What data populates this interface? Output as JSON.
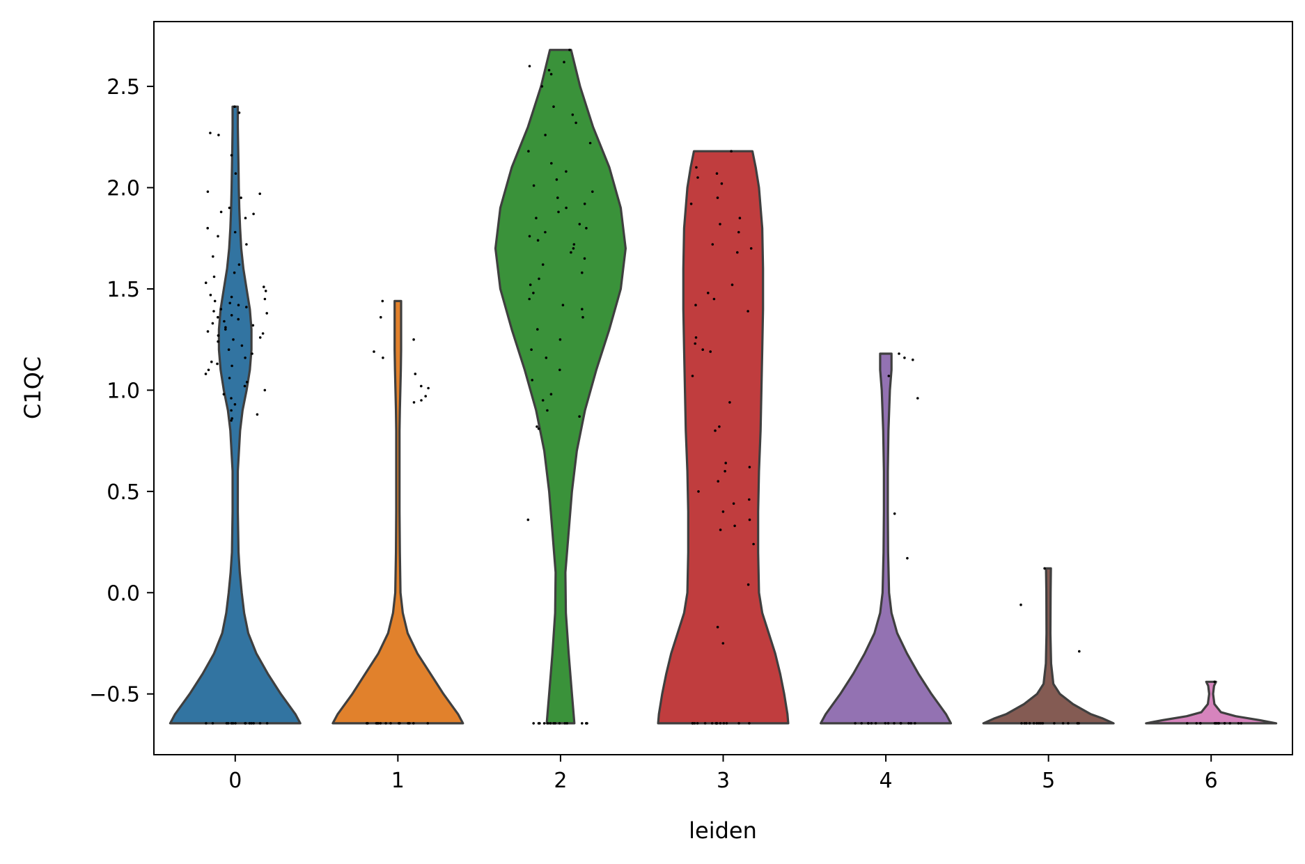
{
  "chart_data": {
    "type": "violin",
    "title": "",
    "xlabel": "leiden",
    "ylabel": "C1QC",
    "ylim": [
      -0.8,
      2.82
    ],
    "xlim": [
      -0.5,
      6.5
    ],
    "yticks": [
      -0.5,
      0.0,
      0.5,
      1.0,
      1.5,
      2.0,
      2.5
    ],
    "ytick_labels": [
      "−0.5",
      "0.0",
      "0.5",
      "1.0",
      "1.5",
      "2.0",
      "2.5"
    ],
    "grid": false,
    "legend": "none",
    "series": [
      {
        "category": "0",
        "color": "#3274a1",
        "min": -0.645,
        "max": 2.4,
        "profile": [
          [
            -0.645,
            0.4
          ],
          [
            -0.6,
            0.37
          ],
          [
            -0.5,
            0.28
          ],
          [
            -0.4,
            0.2
          ],
          [
            -0.3,
            0.13
          ],
          [
            -0.2,
            0.08
          ],
          [
            -0.1,
            0.055
          ],
          [
            0.0,
            0.04
          ],
          [
            0.1,
            0.028
          ],
          [
            0.2,
            0.02
          ],
          [
            0.4,
            0.016
          ],
          [
            0.6,
            0.016
          ],
          [
            0.8,
            0.03
          ],
          [
            0.9,
            0.045
          ],
          [
            1.0,
            0.07
          ],
          [
            1.1,
            0.09
          ],
          [
            1.2,
            0.1
          ],
          [
            1.3,
            0.1
          ],
          [
            1.4,
            0.09
          ],
          [
            1.5,
            0.07
          ],
          [
            1.6,
            0.05
          ],
          [
            1.7,
            0.037
          ],
          [
            1.8,
            0.03
          ],
          [
            1.9,
            0.025
          ],
          [
            2.0,
            0.022
          ],
          [
            2.1,
            0.02
          ],
          [
            2.2,
            0.018
          ],
          [
            2.3,
            0.016
          ],
          [
            2.4,
            0.016
          ]
        ]
      },
      {
        "category": "1",
        "color": "#e1812c",
        "min": -0.645,
        "max": 1.44,
        "profile": [
          [
            -0.645,
            0.4
          ],
          [
            -0.6,
            0.37
          ],
          [
            -0.5,
            0.28
          ],
          [
            -0.4,
            0.2
          ],
          [
            -0.3,
            0.12
          ],
          [
            -0.2,
            0.06
          ],
          [
            -0.1,
            0.03
          ],
          [
            0.0,
            0.016
          ],
          [
            0.2,
            0.012
          ],
          [
            0.4,
            0.01
          ],
          [
            0.6,
            0.01
          ],
          [
            0.8,
            0.01
          ],
          [
            0.9,
            0.012
          ],
          [
            1.0,
            0.015
          ],
          [
            1.1,
            0.018
          ],
          [
            1.2,
            0.02
          ],
          [
            1.3,
            0.02
          ],
          [
            1.44,
            0.02
          ]
        ]
      },
      {
        "category": "2",
        "color": "#3a923a",
        "min": -0.645,
        "max": 2.68,
        "profile": [
          [
            -0.645,
            0.085
          ],
          [
            -0.5,
            0.07
          ],
          [
            -0.3,
            0.05
          ],
          [
            -0.1,
            0.033
          ],
          [
            0.1,
            0.03
          ],
          [
            0.3,
            0.05
          ],
          [
            0.5,
            0.07
          ],
          [
            0.7,
            0.1
          ],
          [
            0.9,
            0.15
          ],
          [
            1.1,
            0.22
          ],
          [
            1.3,
            0.3
          ],
          [
            1.5,
            0.37
          ],
          [
            1.7,
            0.4
          ],
          [
            1.9,
            0.37
          ],
          [
            2.1,
            0.3
          ],
          [
            2.3,
            0.2
          ],
          [
            2.5,
            0.12
          ],
          [
            2.68,
            0.065
          ]
        ]
      },
      {
        "category": "3",
        "color": "#c03d3e",
        "min": -0.645,
        "max": 2.18,
        "profile": [
          [
            -0.645,
            0.4
          ],
          [
            -0.6,
            0.395
          ],
          [
            -0.5,
            0.375
          ],
          [
            -0.4,
            0.35
          ],
          [
            -0.3,
            0.32
          ],
          [
            -0.2,
            0.28
          ],
          [
            -0.1,
            0.24
          ],
          [
            0.0,
            0.22
          ],
          [
            0.2,
            0.215
          ],
          [
            0.4,
            0.215
          ],
          [
            0.6,
            0.22
          ],
          [
            0.8,
            0.23
          ],
          [
            1.0,
            0.235
          ],
          [
            1.2,
            0.24
          ],
          [
            1.4,
            0.245
          ],
          [
            1.6,
            0.245
          ],
          [
            1.8,
            0.24
          ],
          [
            2.0,
            0.22
          ],
          [
            2.1,
            0.2
          ],
          [
            2.18,
            0.18
          ]
        ]
      },
      {
        "category": "4",
        "color": "#9372b2",
        "min": -0.645,
        "max": 1.18,
        "profile": [
          [
            -0.645,
            0.4
          ],
          [
            -0.6,
            0.37
          ],
          [
            -0.5,
            0.28
          ],
          [
            -0.4,
            0.2
          ],
          [
            -0.3,
            0.13
          ],
          [
            -0.2,
            0.07
          ],
          [
            -0.1,
            0.035
          ],
          [
            0.0,
            0.02
          ],
          [
            0.2,
            0.014
          ],
          [
            0.4,
            0.012
          ],
          [
            0.6,
            0.012
          ],
          [
            0.8,
            0.016
          ],
          [
            1.0,
            0.025
          ],
          [
            1.1,
            0.035
          ],
          [
            1.18,
            0.035
          ]
        ]
      },
      {
        "category": "5",
        "color": "#845b53",
        "min": -0.645,
        "max": 0.12,
        "profile": [
          [
            -0.645,
            0.4
          ],
          [
            -0.62,
            0.33
          ],
          [
            -0.6,
            0.26
          ],
          [
            -0.55,
            0.15
          ],
          [
            -0.5,
            0.07
          ],
          [
            -0.45,
            0.03
          ],
          [
            -0.35,
            0.016
          ],
          [
            -0.2,
            0.012
          ],
          [
            0.0,
            0.013
          ],
          [
            0.12,
            0.015
          ]
        ]
      },
      {
        "category": "6",
        "color": "#d684bd",
        "min": -0.645,
        "max": -0.44,
        "profile": [
          [
            -0.645,
            0.4
          ],
          [
            -0.63,
            0.3
          ],
          [
            -0.61,
            0.15
          ],
          [
            -0.59,
            0.06
          ],
          [
            -0.55,
            0.02
          ],
          [
            -0.5,
            0.012
          ],
          [
            -0.46,
            0.018
          ],
          [
            -0.44,
            0.03
          ]
        ]
      }
    ],
    "jitter": {
      "color": "#000000",
      "points": [
        [
          0,
          2.4
        ],
        [
          0,
          2.37
        ],
        [
          0,
          2.27
        ],
        [
          0,
          2.26
        ],
        [
          0,
          2.16
        ],
        [
          0,
          2.07
        ],
        [
          0,
          1.98
        ],
        [
          0,
          1.97
        ],
        [
          0,
          1.95
        ],
        [
          0,
          1.9
        ],
        [
          0,
          1.88
        ],
        [
          0,
          1.87
        ],
        [
          0,
          1.85
        ],
        [
          0,
          1.8
        ],
        [
          0,
          1.78
        ],
        [
          0,
          1.76
        ],
        [
          0,
          1.72
        ],
        [
          0,
          1.66
        ],
        [
          0,
          1.62
        ],
        [
          0,
          1.58
        ],
        [
          0,
          1.56
        ],
        [
          0,
          1.53
        ],
        [
          0,
          1.51
        ],
        [
          0,
          1.49
        ],
        [
          0,
          1.47
        ],
        [
          0,
          1.46
        ],
        [
          0,
          1.45
        ],
        [
          0,
          1.44
        ],
        [
          0,
          1.43
        ],
        [
          0,
          1.42
        ],
        [
          0,
          1.41
        ],
        [
          0,
          1.4
        ],
        [
          0,
          1.39
        ],
        [
          0,
          1.38
        ],
        [
          0,
          1.37
        ],
        [
          0,
          1.36
        ],
        [
          0,
          1.35
        ],
        [
          0,
          1.34
        ],
        [
          0,
          1.33
        ],
        [
          0,
          1.32
        ],
        [
          0,
          1.31
        ],
        [
          0,
          1.3
        ],
        [
          0,
          1.29
        ],
        [
          0,
          1.28
        ],
        [
          0,
          1.27
        ],
        [
          0,
          1.26
        ],
        [
          0,
          1.25
        ],
        [
          0,
          1.24
        ],
        [
          0,
          1.22
        ],
        [
          0,
          1.2
        ],
        [
          0,
          1.18
        ],
        [
          0,
          1.16
        ],
        [
          0,
          1.14
        ],
        [
          0,
          1.13
        ],
        [
          0,
          1.12
        ],
        [
          0,
          1.1
        ],
        [
          0,
          1.08
        ],
        [
          0,
          1.06
        ],
        [
          0,
          1.04
        ],
        [
          0,
          1.02
        ],
        [
          0,
          1.0
        ],
        [
          0,
          0.98
        ],
        [
          0,
          0.96
        ],
        [
          0,
          0.93
        ],
        [
          0,
          0.9
        ],
        [
          0,
          0.88
        ],
        [
          0,
          0.86
        ],
        [
          0,
          0.85
        ],
        [
          1,
          1.44
        ],
        [
          1,
          1.36
        ],
        [
          1,
          1.25
        ],
        [
          1,
          1.19
        ],
        [
          1,
          1.16
        ],
        [
          1,
          1.08
        ],
        [
          1,
          1.02
        ],
        [
          1,
          1.01
        ],
        [
          1,
          0.97
        ],
        [
          1,
          0.95
        ],
        [
          1,
          0.94
        ],
        [
          2,
          2.68
        ],
        [
          2,
          2.62
        ],
        [
          2,
          2.6
        ],
        [
          2,
          2.58
        ],
        [
          2,
          2.56
        ],
        [
          2,
          2.5
        ],
        [
          2,
          2.4
        ],
        [
          2,
          2.36
        ],
        [
          2,
          2.32
        ],
        [
          2,
          2.26
        ],
        [
          2,
          2.22
        ],
        [
          2,
          2.18
        ],
        [
          2,
          2.12
        ],
        [
          2,
          2.08
        ],
        [
          2,
          2.04
        ],
        [
          2,
          2.01
        ],
        [
          2,
          1.98
        ],
        [
          2,
          1.95
        ],
        [
          2,
          1.92
        ],
        [
          2,
          1.9
        ],
        [
          2,
          1.88
        ],
        [
          2,
          1.85
        ],
        [
          2,
          1.82
        ],
        [
          2,
          1.8
        ],
        [
          2,
          1.78
        ],
        [
          2,
          1.76
        ],
        [
          2,
          1.74
        ],
        [
          2,
          1.72
        ],
        [
          2,
          1.7
        ],
        [
          2,
          1.68
        ],
        [
          2,
          1.65
        ],
        [
          2,
          1.62
        ],
        [
          2,
          1.58
        ],
        [
          2,
          1.55
        ],
        [
          2,
          1.52
        ],
        [
          2,
          1.48
        ],
        [
          2,
          1.45
        ],
        [
          2,
          1.42
        ],
        [
          2,
          1.4
        ],
        [
          2,
          1.36
        ],
        [
          2,
          1.3
        ],
        [
          2,
          1.25
        ],
        [
          2,
          1.2
        ],
        [
          2,
          1.16
        ],
        [
          2,
          1.1
        ],
        [
          2,
          1.05
        ],
        [
          2,
          0.98
        ],
        [
          2,
          0.95
        ],
        [
          2,
          0.9
        ],
        [
          2,
          0.87
        ],
        [
          2,
          0.82
        ],
        [
          2,
          0.81
        ],
        [
          2,
          0.36
        ],
        [
          3,
          2.18
        ],
        [
          3,
          2.1
        ],
        [
          3,
          2.07
        ],
        [
          3,
          2.05
        ],
        [
          3,
          2.02
        ],
        [
          3,
          1.95
        ],
        [
          3,
          1.92
        ],
        [
          3,
          1.85
        ],
        [
          3,
          1.82
        ],
        [
          3,
          1.78
        ],
        [
          3,
          1.72
        ],
        [
          3,
          1.7
        ],
        [
          3,
          1.68
        ],
        [
          3,
          1.52
        ],
        [
          3,
          1.48
        ],
        [
          3,
          1.45
        ],
        [
          3,
          1.42
        ],
        [
          3,
          1.39
        ],
        [
          3,
          1.26
        ],
        [
          3,
          1.23
        ],
        [
          3,
          1.2
        ],
        [
          3,
          1.19
        ],
        [
          3,
          1.07
        ],
        [
          3,
          0.94
        ],
        [
          3,
          0.82
        ],
        [
          3,
          0.8
        ],
        [
          3,
          0.64
        ],
        [
          3,
          0.62
        ],
        [
          3,
          0.6
        ],
        [
          3,
          0.55
        ],
        [
          3,
          0.5
        ],
        [
          3,
          0.46
        ],
        [
          3,
          0.44
        ],
        [
          3,
          0.4
        ],
        [
          3,
          0.36
        ],
        [
          3,
          0.33
        ],
        [
          3,
          0.31
        ],
        [
          3,
          0.24
        ],
        [
          3,
          0.04
        ],
        [
          3,
          -0.17
        ],
        [
          3,
          -0.25
        ],
        [
          4,
          1.18
        ],
        [
          4,
          1.16
        ],
        [
          4,
          1.15
        ],
        [
          4,
          1.07
        ],
        [
          4,
          0.96
        ],
        [
          4,
          0.39
        ],
        [
          4,
          0.17
        ],
        [
          5,
          0.12
        ],
        [
          5,
          -0.06
        ],
        [
          5,
          -0.29
        ],
        [
          6,
          -0.44
        ]
      ]
    }
  }
}
